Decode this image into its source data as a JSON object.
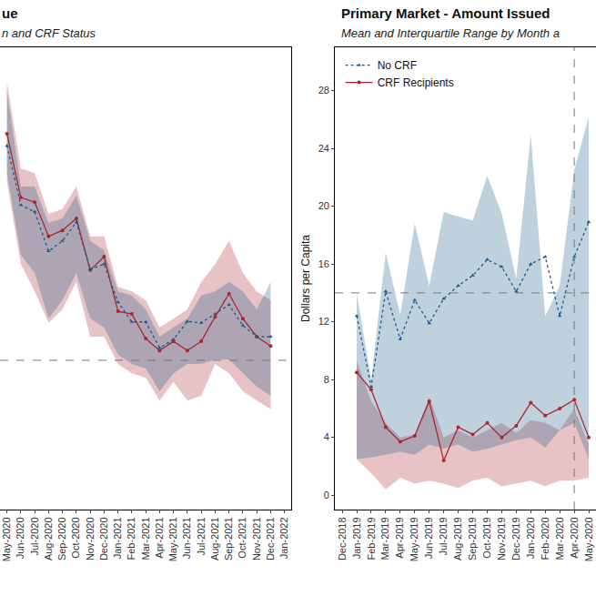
{
  "chart_data": [
    {
      "type": "line",
      "title": "ue",
      "subtitle": "n and CRF Status",
      "tick_labels": "x",
      "categories": [
        "May-2020",
        "Jun-2020",
        "Jul-2020",
        "Aug-2020",
        "Sep-2020",
        "Oct-2020",
        "Nov-2020",
        "Dec-2020",
        "Jan-2021",
        "Feb-2021",
        "Mar-2021",
        "Apr-2021",
        "May-2021",
        "Jun-2021",
        "Jul-2021",
        "Aug-2021",
        "Sep-2021",
        "Oct-2021",
        "Nov-2021",
        "Dec-2021",
        "Jan-2022"
      ],
      "ylim": [
        0,
        100
      ],
      "hline": 32.3,
      "series": [
        {
          "color": "#a8262e",
          "marker": "circle",
          "line_style": "solid",
          "values": [
            81.3,
            67.5,
            66.5,
            59.1,
            60.4,
            63.0,
            51.8,
            54.7,
            42.9,
            42.3,
            37.0,
            34.4,
            36.4,
            34.4,
            36.4,
            41.7,
            46.7,
            41.3,
            37.4,
            35.4,
            null
          ],
          "upper": [
            92.5,
            73.8,
            72.8,
            64.0,
            65.0,
            69.9,
            59.1,
            59.1,
            48.2,
            47.2,
            45.3,
            39.4,
            41.3,
            43.3,
            49.2,
            53.1,
            58.1,
            51.2,
            47.2,
            45.3,
            null
          ],
          "lower": [
            70.9,
            53.1,
            47.2,
            40.4,
            43.3,
            49.2,
            37.4,
            37.4,
            31.5,
            29.5,
            28.5,
            23.6,
            27.6,
            23.6,
            24.6,
            31.5,
            29.5,
            25.6,
            23.6,
            21.7,
            null
          ]
        },
        {
          "color": "#1d5a8a",
          "marker": "triangle-up",
          "line_style": "dot",
          "values": [
            78.7,
            65.9,
            64.4,
            55.9,
            58.1,
            62.2,
            52.0,
            53.1,
            44.9,
            40.6,
            40.6,
            35.0,
            36.8,
            40.7,
            40.4,
            42.3,
            44.3,
            39.8,
            37.4,
            37.4,
            null
          ],
          "upper": [
            90.6,
            69.9,
            69.9,
            62.0,
            63.0,
            67.9,
            58.1,
            56.1,
            47.2,
            46.3,
            43.3,
            37.4,
            39.4,
            41.3,
            46.3,
            47.2,
            49.2,
            47.2,
            43.3,
            49.2,
            null
          ],
          "lower": [
            72.8,
            55.1,
            51.2,
            41.3,
            45.3,
            51.2,
            41.3,
            39.4,
            33.5,
            31.5,
            30.5,
            25.6,
            29.5,
            31.5,
            31.5,
            32.5,
            32.5,
            29.5,
            26.6,
            24.6,
            null
          ]
        }
      ]
    },
    {
      "type": "line",
      "title": "Primary Market - Amount Issued",
      "subtitle": "Mean and Interquartile Range by Month a",
      "y_label": "Dollars per Capita",
      "legend": "top left",
      "categories": [
        "Dec-2018",
        "Jan-2019",
        "Feb-2019",
        "Mar-2019",
        "Apr-2019",
        "May-2019",
        "Jun-2019",
        "Jul-2019",
        "Aug-2019",
        "Sep-2019",
        "Oct-2019",
        "Nov-2019",
        "Dec-2019",
        "Jan-2020",
        "Feb-2020",
        "Mar-2020",
        "Apr-2020",
        "May-2020"
      ],
      "ylim": [
        -1,
        31
      ],
      "yticks": [
        0,
        4,
        8,
        12,
        16,
        20,
        24,
        28
      ],
      "hline": 14,
      "vline": "Apr-2020",
      "series": [
        {
          "name": "CRF Recipients",
          "color": "#a8262e",
          "marker": "circle",
          "line_style": "solid",
          "values": [
            null,
            8.5,
            7.3,
            4.7,
            3.7,
            4.1,
            6.5,
            2.4,
            4.7,
            4.2,
            5.0,
            4.0,
            4.8,
            6.4,
            5.5,
            6.0,
            6.6,
            4.0
          ],
          "upper": [
            null,
            9.3,
            6.5,
            5.0,
            4.0,
            4.2,
            6.8,
            4.0,
            4.5,
            4.0,
            4.5,
            5.0,
            4.3,
            5.2,
            5.0,
            4.5,
            6.0,
            3.5
          ],
          "lower": [
            null,
            2.5,
            1.5,
            0.4,
            1.2,
            0.8,
            1.0,
            0.8,
            0.5,
            1.0,
            1.2,
            0.6,
            0.8,
            1.0,
            0.6,
            1.0,
            1.0,
            1.2
          ]
        },
        {
          "name": "No CRF",
          "color": "#1d5a8a",
          "marker": "triangle-up",
          "line_style": "dot",
          "values": [
            null,
            12.4,
            7.5,
            14.1,
            10.8,
            13.5,
            11.9,
            13.6,
            14.5,
            15.2,
            16.3,
            15.8,
            14.1,
            16.0,
            16.5,
            12.4,
            16.5,
            18.9
          ],
          "upper": [
            null,
            14.0,
            8.0,
            16.8,
            12.5,
            18.8,
            14.5,
            19.6,
            19.3,
            19.0,
            22.1,
            19.5,
            15.0,
            24.9,
            12.4,
            14.5,
            22.5,
            26.2
          ],
          "lower": [
            null,
            2.5,
            2.6,
            2.8,
            3.0,
            2.8,
            3.5,
            3.2,
            3.5,
            3.0,
            3.2,
            3.5,
            3.8,
            4.0,
            3.3,
            4.5,
            5.0,
            2.5
          ]
        }
      ]
    }
  ]
}
